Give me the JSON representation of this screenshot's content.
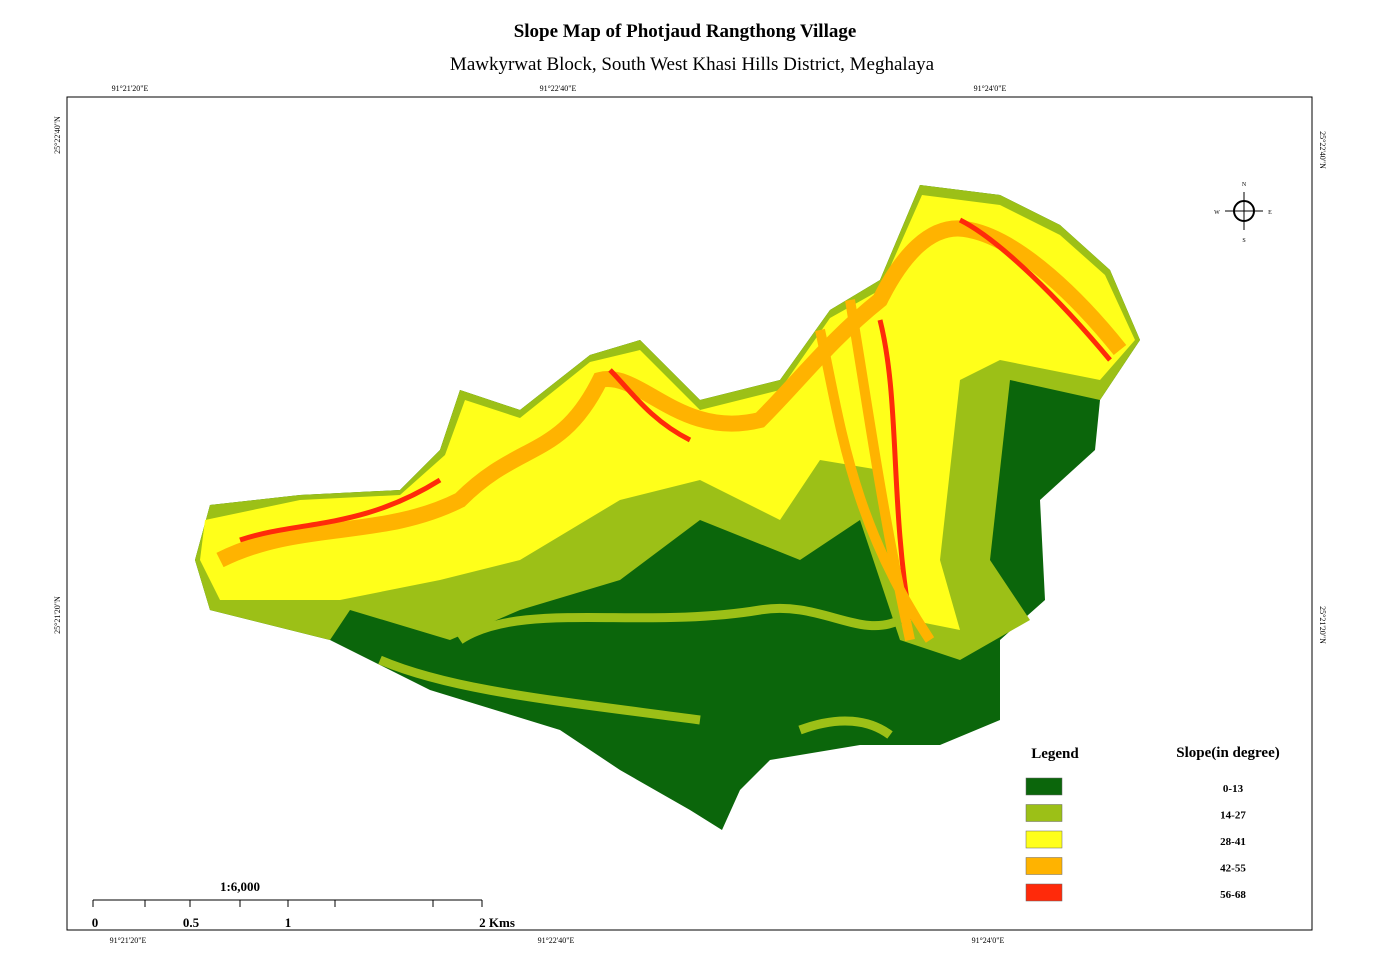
{
  "title": "Slope Map of  Photjaud Rangthong Village",
  "subtitle": "Mawkyrwat  Block, South West Khasi Hills District, Meghalaya",
  "top_coords": [
    "91°21'20\"E",
    "91°22'40\"E",
    "91°24'0\"E"
  ],
  "bottom_coords": [
    "91°21'20\"E",
    "91°22'40\"E",
    "91°24'0\"E"
  ],
  "left_coords": [
    "25°22'40\"N",
    "25°21'20\"N"
  ],
  "right_coords": [
    "25°22'40\"N",
    "25°21'20\"N"
  ],
  "compass": {
    "north": "N",
    "east": "E",
    "south": "S",
    "west": "W"
  },
  "legend": {
    "title": "Legend",
    "heading": "Slope(in degree)",
    "items": [
      {
        "label": "0-13",
        "color": "#0b660b"
      },
      {
        "label": "14-27",
        "color": "#9cc017"
      },
      {
        "label": "28-41",
        "color": "#ffff1a"
      },
      {
        "label": "42-55",
        "color": "#ffb300"
      },
      {
        "label": "56-68",
        "color": "#ff2a0a"
      }
    ]
  },
  "scale": {
    "ratio": "1:6,000",
    "labels": [
      "0",
      "0.5",
      "1",
      "2 Kms"
    ]
  }
}
